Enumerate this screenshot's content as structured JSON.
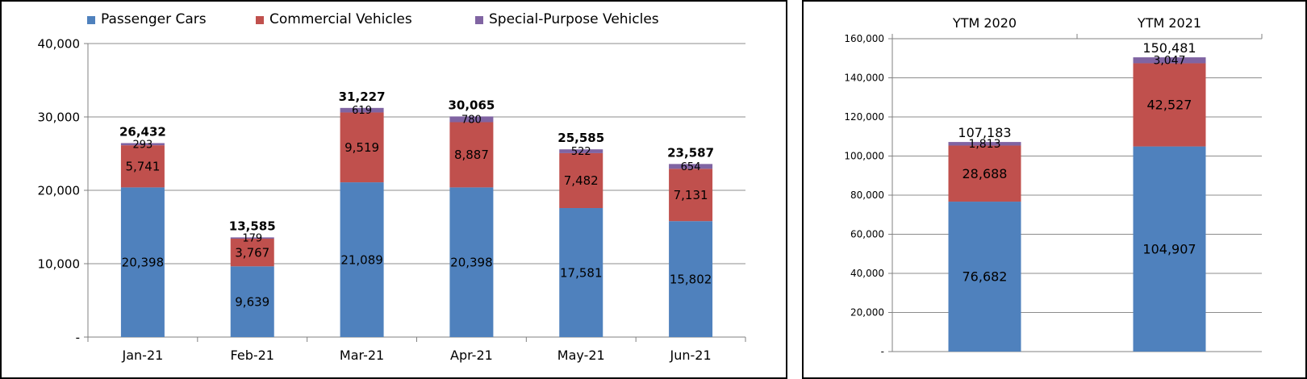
{
  "chart_data": [
    {
      "type": "bar",
      "stacked": true,
      "categories": [
        "Jan-21",
        "Feb-21",
        "Mar-21",
        "Apr-21",
        "May-21",
        "Jun-21"
      ],
      "series": [
        {
          "name": "Passenger Cars",
          "color": "#4f81bd",
          "values": [
            20398,
            9639,
            21089,
            20398,
            17581,
            15802
          ]
        },
        {
          "name": "Commercial Vehicles",
          "color": "#c0504d",
          "values": [
            5741,
            3767,
            9519,
            8887,
            7482,
            7131
          ]
        },
        {
          "name": "Special-Purpose Vehicles",
          "color": "#8064a2",
          "values": [
            293,
            179,
            619,
            780,
            522,
            654
          ]
        }
      ],
      "totals": [
        26432,
        13585,
        31227,
        30065,
        25585,
        23587
      ],
      "value_labels": {
        "series": [
          [
            "20,398",
            "9,639",
            "21,089",
            "20,398",
            "17,581",
            "15,802"
          ],
          [
            "5,741",
            "3,767",
            "9,519",
            "8,887",
            "7,482",
            "7,131"
          ],
          [
            "293",
            "179",
            "619",
            "780",
            "522",
            "654"
          ]
        ],
        "totals": [
          "26,432",
          "13,585",
          "31,227",
          "30,065",
          "25,585",
          "23,587"
        ]
      },
      "ylim": [
        0,
        40000
      ],
      "yticks": [
        0,
        10000,
        20000,
        30000,
        40000
      ],
      "ytick_labels": [
        "-",
        "10,000",
        "20,000",
        "30,000",
        "40,000"
      ],
      "grid": true,
      "legend": "top"
    },
    {
      "type": "bar",
      "stacked": true,
      "categories": [
        "YTM 2020",
        "YTM 2021"
      ],
      "series": [
        {
          "name": "Passenger Cars",
          "color": "#4f81bd",
          "values": [
            76682,
            104907
          ]
        },
        {
          "name": "Commercial Vehicles",
          "color": "#c0504d",
          "values": [
            28688,
            42527
          ]
        },
        {
          "name": "Special-Purpose Vehicles",
          "color": "#8064a2",
          "values": [
            1813,
            3047
          ]
        }
      ],
      "totals": [
        107183,
        150481
      ],
      "value_labels": {
        "series": [
          [
            "76,682",
            "104,907"
          ],
          [
            "28,688",
            "42,527"
          ],
          [
            "1,813",
            "3,047"
          ]
        ],
        "totals": [
          "107,183",
          "150,481"
        ]
      },
      "ylim": [
        0,
        160000
      ],
      "yticks": [
        0,
        20000,
        40000,
        60000,
        80000,
        100000,
        120000,
        140000,
        160000
      ],
      "ytick_labels": [
        "-",
        "20,000",
        "40,000",
        "60,000",
        "80,000",
        "100,000",
        "120,000",
        "140,000",
        "160,000"
      ],
      "grid": true,
      "xaxis_position": "top",
      "legend": "none"
    }
  ]
}
